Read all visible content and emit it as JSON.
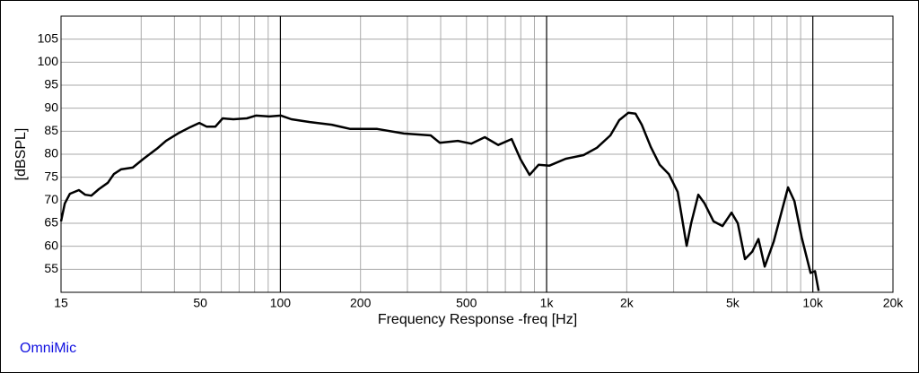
{
  "chart_data": {
    "type": "line",
    "xlabel": "Frequency Response -freq [Hz]",
    "ylabel": "[dBSPL]",
    "annotation": "OmniMic",
    "log_x": true,
    "grid": true,
    "xlim": [
      15,
      20000
    ],
    "ylim": [
      50,
      110
    ],
    "xticks": [
      15,
      50,
      100,
      200,
      500,
      {
        "value": 1000,
        "label": "1k"
      },
      {
        "value": 2000,
        "label": "2k"
      },
      {
        "value": 5000,
        "label": "5k"
      },
      {
        "value": 10000,
        "label": "10k"
      },
      {
        "value": 20000,
        "label": "20k"
      }
    ],
    "xminor": [
      30,
      40,
      60,
      70,
      80,
      90,
      300,
      400,
      600,
      700,
      800,
      900,
      3000,
      4000,
      6000,
      7000,
      8000,
      9000
    ],
    "yticks": [
      55,
      60,
      65,
      70,
      75,
      80,
      85,
      90,
      95,
      100,
      105
    ],
    "series": [
      {
        "name": "freq",
        "color": "#000000",
        "x": [
          15,
          15.5,
          16.2,
          17.5,
          18.5,
          19.5,
          20.8,
          22.5,
          23.7,
          25.2,
          27.9,
          30.6,
          34.4,
          37.2,
          41.2,
          45.9,
          49.6,
          52.8,
          57,
          60.7,
          66.6,
          74.8,
          80.9,
          90.8,
          100.5,
          110,
          129,
          156,
          183,
          231,
          291,
          367,
          397,
          464,
          521,
          586,
          658,
          739,
          798,
          863,
          933,
          1023,
          1178,
          1376,
          1545,
          1736,
          1875,
          2027,
          2157,
          2278,
          2461,
          2661,
          2876,
          3106,
          3358,
          3491,
          3714,
          3923,
          4238,
          4580,
          4950,
          5226,
          5560,
          5918,
          6249,
          6599,
          7130,
          7587,
          8074,
          8526,
          9072,
          9804,
          10190,
          10515
        ],
        "values": [
          65.4,
          69.3,
          71.4,
          72.2,
          71.2,
          71,
          72.4,
          73.8,
          75.7,
          76.7,
          77.1,
          79,
          81.2,
          82.9,
          84.5,
          85.9,
          86.8,
          86,
          86,
          87.8,
          87.6,
          87.8,
          88.4,
          88.2,
          88.4,
          87.6,
          87,
          86.4,
          85.5,
          85.5,
          84.5,
          84.1,
          82.5,
          82.9,
          82.3,
          83.7,
          82,
          83.3,
          78.9,
          75.5,
          77.7,
          77.5,
          79,
          79.8,
          81.4,
          84.1,
          87.4,
          89,
          88.8,
          86.4,
          81.6,
          77.7,
          75.7,
          71.8,
          60.1,
          65,
          71.2,
          69.3,
          65.4,
          64.4,
          67.3,
          65,
          57.2,
          58.8,
          61.6,
          55.6,
          61,
          66.9,
          72.8,
          69.8,
          62,
          54.2,
          54.6,
          50.3
        ]
      }
    ]
  }
}
